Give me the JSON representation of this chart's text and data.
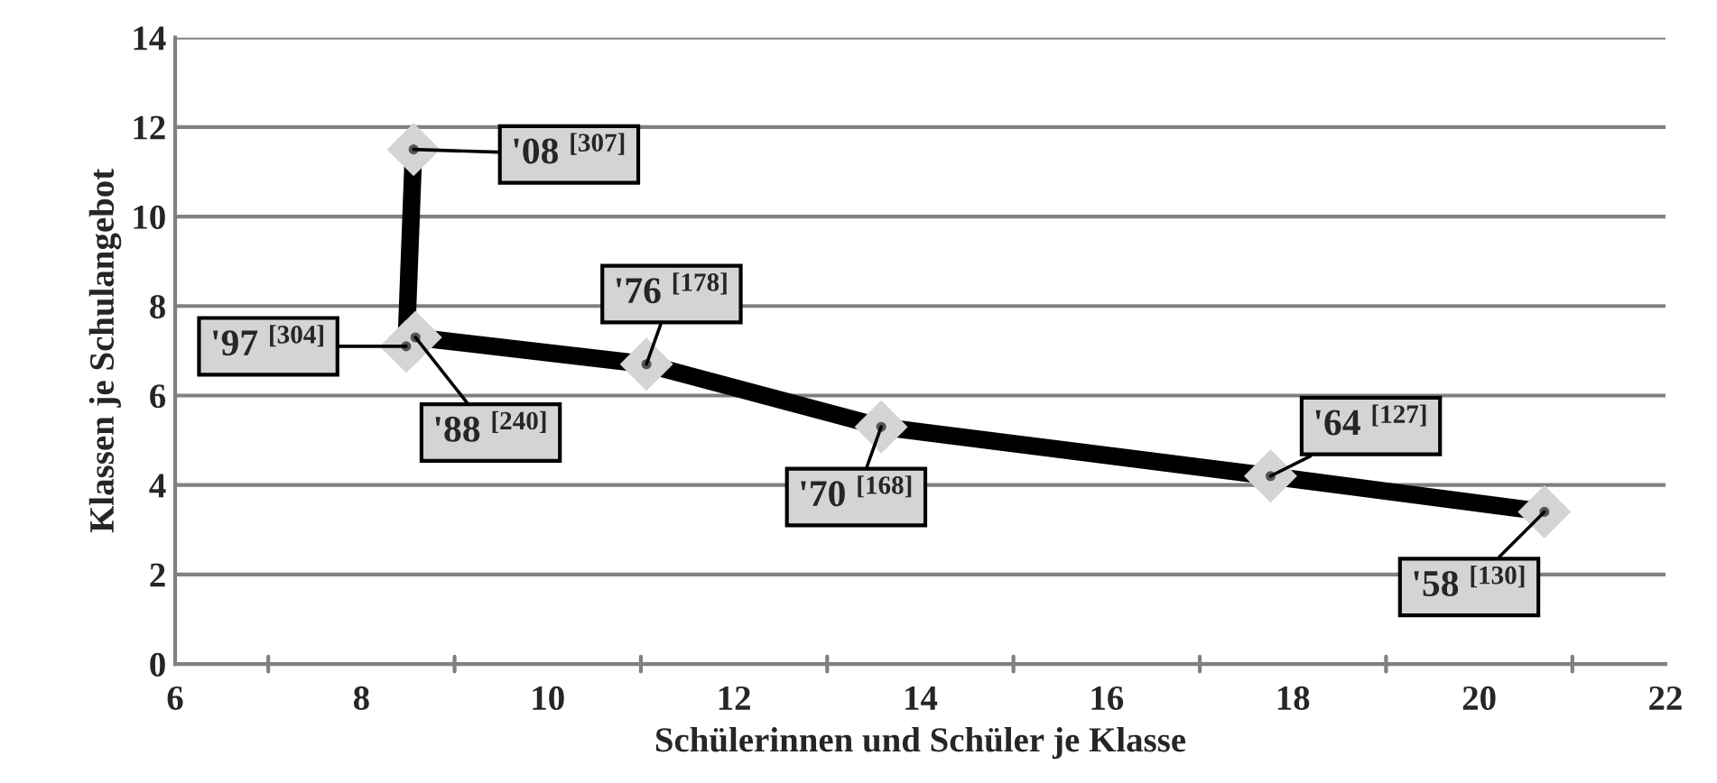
{
  "chart_data": {
    "type": "line",
    "xlabel": "Schülerinnen und Schüler je Klasse",
    "ylabel": "Klassen je Schulangebot",
    "x": [
      20.7,
      17.76,
      13.58,
      11.06,
      8.58,
      8.48,
      8.56
    ],
    "series": [
      {
        "color": "#000000",
        "values": [
          3.4,
          4.2,
          5.3,
          6.7,
          7.3,
          7.1,
          11.5
        ]
      }
    ],
    "xlim": [
      6,
      22
    ],
    "xticks": [
      6,
      {
        "value": 7,
        "label": null
      },
      8,
      {
        "value": 9,
        "label": null
      },
      10,
      {
        "value": 11,
        "label": null
      },
      12,
      {
        "value": 13,
        "label": null
      },
      14,
      {
        "value": 15,
        "label": null
      },
      16,
      {
        "value": 17,
        "label": null
      },
      18,
      {
        "value": 19,
        "label": null
      },
      20,
      {
        "value": 21,
        "label": null
      },
      22
    ],
    "ylim": [
      0,
      14
    ],
    "yticks": [
      0,
      2,
      4,
      6,
      8,
      10,
      12,
      14
    ],
    "grid": "y",
    "marker": "diamond",
    "line_style": "solid",
    "legend": false,
    "annotations": [
      {
        "text": "'58 $^{[130]}$",
        "x": 20.7,
        "y": 3.4
      },
      {
        "text": "'64 $^{[127]}$",
        "x": 17.76,
        "y": 4.2
      },
      {
        "text": "'70 $^{[168]}$",
        "x": 13.58,
        "y": 5.3
      },
      {
        "text": "'76 $^{[178]}$",
        "x": 11.06,
        "y": 6.7
      },
      {
        "text": "'88 $^{[240]}$",
        "x": 8.58,
        "y": 7.3
      },
      {
        "text": "'97 $^{[304]}$",
        "x": 8.48,
        "y": 7.1
      },
      {
        "text": "'08 $^{[307]}$",
        "x": 8.56,
        "y": 11.5
      }
    ]
  }
}
